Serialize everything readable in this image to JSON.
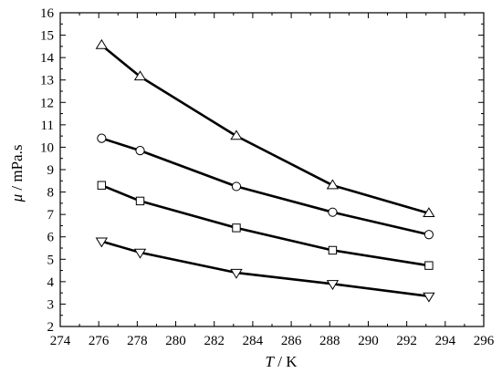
{
  "chart_data": {
    "type": "line",
    "title": "",
    "xlabel": {
      "symbol": "T",
      "unit": " / K"
    },
    "ylabel": {
      "symbol": "μ",
      "unit": " / mPa.s"
    },
    "xlim": [
      274,
      296
    ],
    "ylim": [
      2,
      16
    ],
    "xticks": [
      274,
      276,
      278,
      280,
      282,
      284,
      286,
      288,
      290,
      292,
      294,
      296
    ],
    "yticks": [
      2,
      3,
      4,
      5,
      6,
      7,
      8,
      9,
      10,
      11,
      12,
      13,
      14,
      15,
      16
    ],
    "grid": false,
    "legend": "none",
    "x": [
      276.15,
      278.15,
      283.15,
      288.15,
      293.15
    ],
    "series": [
      {
        "marker": "triangle-up",
        "values": [
          14.55,
          13.15,
          10.5,
          8.3,
          7.05
        ]
      },
      {
        "marker": "circle",
        "values": [
          10.4,
          9.85,
          8.25,
          7.1,
          6.1
        ]
      },
      {
        "marker": "square",
        "values": [
          8.3,
          7.6,
          6.4,
          5.4,
          4.72
        ]
      },
      {
        "marker": "triangle-down",
        "values": [
          5.8,
          5.3,
          4.4,
          3.9,
          3.35
        ]
      }
    ],
    "colors": {
      "line": "#000000",
      "marker_fill": "#ffffff"
    }
  }
}
